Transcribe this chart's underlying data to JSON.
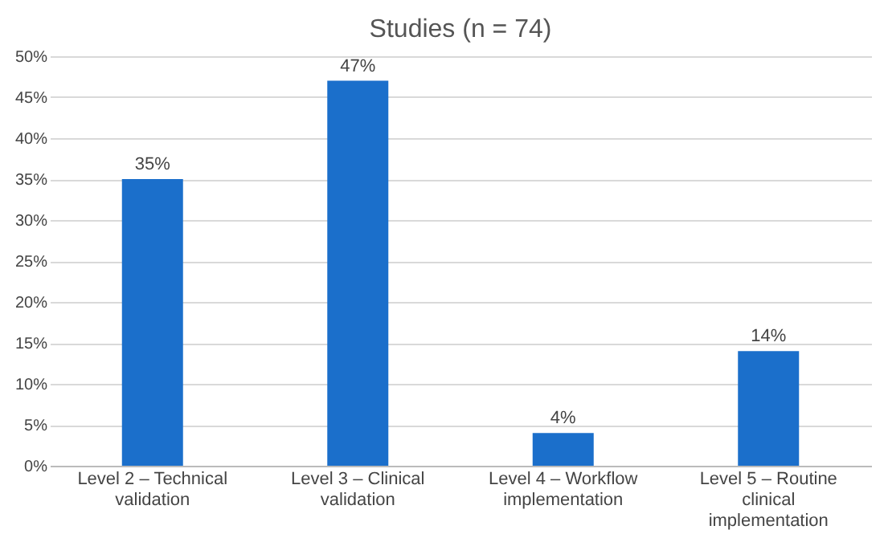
{
  "chart_data": {
    "type": "bar",
    "title": "Studies (n = 74)",
    "categories": [
      "Level 2 – Technical validation",
      "Level 3 – Clinical validation",
      "Level 4 – Workflow implementation",
      "Level 5 – Routine clinical implementation"
    ],
    "values": [
      35,
      47,
      4,
      14
    ],
    "color": "#1b6fcb",
    "value_labels": [
      "35%",
      "47%",
      "4%",
      "14%"
    ],
    "ylim": [
      0,
      50
    ],
    "yticks": [
      {
        "value": 0,
        "label": "0%"
      },
      {
        "value": 5,
        "label": "5%"
      },
      {
        "value": 10,
        "label": "10%"
      },
      {
        "value": 15,
        "label": "15%"
      },
      {
        "value": 20,
        "label": "20%"
      },
      {
        "value": 25,
        "label": "25%"
      },
      {
        "value": 30,
        "label": "30%"
      },
      {
        "value": 35,
        "label": "35%"
      },
      {
        "value": 40,
        "label": "40%"
      },
      {
        "value": 45,
        "label": "45%"
      },
      {
        "value": 50,
        "label": "50%"
      }
    ],
    "grid": "y"
  }
}
